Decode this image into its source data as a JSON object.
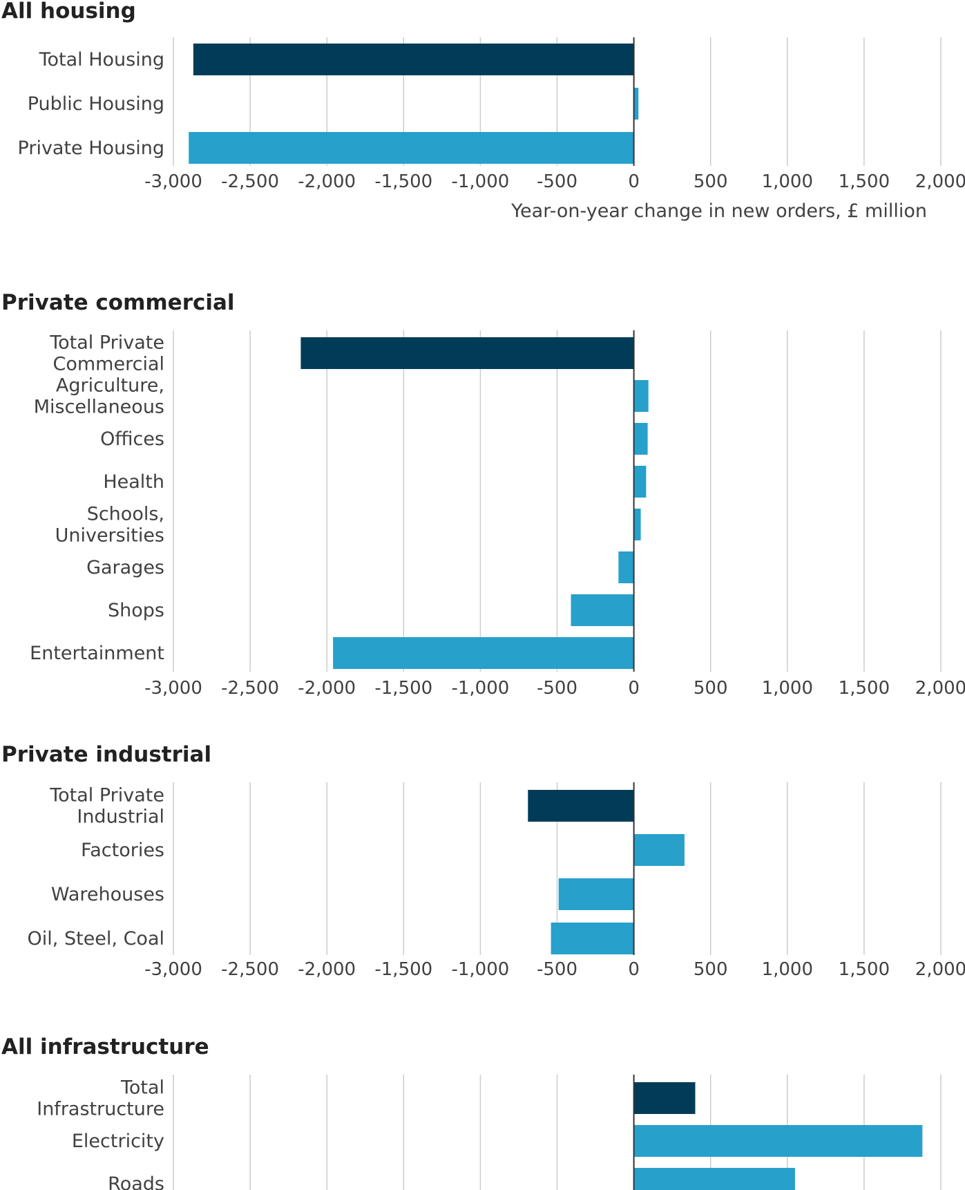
{
  "chart_data": [
    {
      "type": "bar",
      "orientation": "horizontal",
      "title": "All housing",
      "categories": [
        [
          "Total Housing"
        ],
        [
          "Public Housing"
        ],
        [
          "Private Housing"
        ]
      ],
      "values": [
        -2870,
        30,
        -2900
      ],
      "colors": [
        "#003c57",
        "#27a0cc",
        "#27a0cc"
      ],
      "xlim": [
        -3000,
        2000
      ],
      "ticks": [
        "-3,000",
        "-2,500",
        "-2,000",
        "-1,500",
        "-1,000",
        "-500",
        "0",
        "500",
        "1,000",
        "1,500",
        "2,000"
      ],
      "xlabel": "Year-on-year change in new orders, £ million",
      "grid": true
    },
    {
      "type": "bar",
      "orientation": "horizontal",
      "title": "Private commercial",
      "categories": [
        [
          "Total Private",
          "Commercial"
        ],
        [
          "Agriculture,",
          "Miscellaneous"
        ],
        [
          "Offices"
        ],
        [
          "Health"
        ],
        [
          "Schools,",
          "Universities"
        ],
        [
          "Garages"
        ],
        [
          "Shops"
        ],
        [
          "Entertainment"
        ]
      ],
      "values": [
        -2170,
        95,
        90,
        80,
        45,
        -100,
        -410,
        -1960
      ],
      "colors": [
        "#003c57",
        "#27a0cc",
        "#27a0cc",
        "#27a0cc",
        "#27a0cc",
        "#27a0cc",
        "#27a0cc",
        "#27a0cc"
      ],
      "xlim": [
        -3000,
        2000
      ],
      "ticks": [
        "-3,000",
        "-2,500",
        "-2,000",
        "-1,500",
        "-1,000",
        "-500",
        "0",
        "500",
        "1,000",
        "1,500",
        "2,000"
      ],
      "xlabel": "",
      "grid": true
    },
    {
      "type": "bar",
      "orientation": "horizontal",
      "title": "Private industrial",
      "categories": [
        [
          "Total Private",
          "Industrial"
        ],
        [
          "Factories"
        ],
        [
          "Warehouses"
        ],
        [
          "Oil, Steel, Coal"
        ]
      ],
      "values": [
        -690,
        330,
        -490,
        -540
      ],
      "colors": [
        "#003c57",
        "#27a0cc",
        "#27a0cc",
        "#27a0cc"
      ],
      "xlim": [
        -3000,
        2000
      ],
      "ticks": [
        "-3,000",
        "-2,500",
        "-2,000",
        "-1,500",
        "-1,000",
        "-500",
        "0",
        "500",
        "1,000",
        "1,500",
        "2,000"
      ],
      "xlabel": "",
      "grid": true
    },
    {
      "type": "bar",
      "orientation": "horizontal",
      "title": "All infrastructure",
      "categories": [
        [
          "Total",
          "Infrastructure"
        ],
        [
          "Electricity"
        ],
        [
          "Roads"
        ]
      ],
      "values": [
        400,
        1880,
        1050
      ],
      "colors": [
        "#003c57",
        "#27a0cc",
        "#27a0cc"
      ],
      "xlim": [
        -3000,
        2000
      ],
      "ticks": [],
      "xlabel": "",
      "grid": true
    }
  ]
}
